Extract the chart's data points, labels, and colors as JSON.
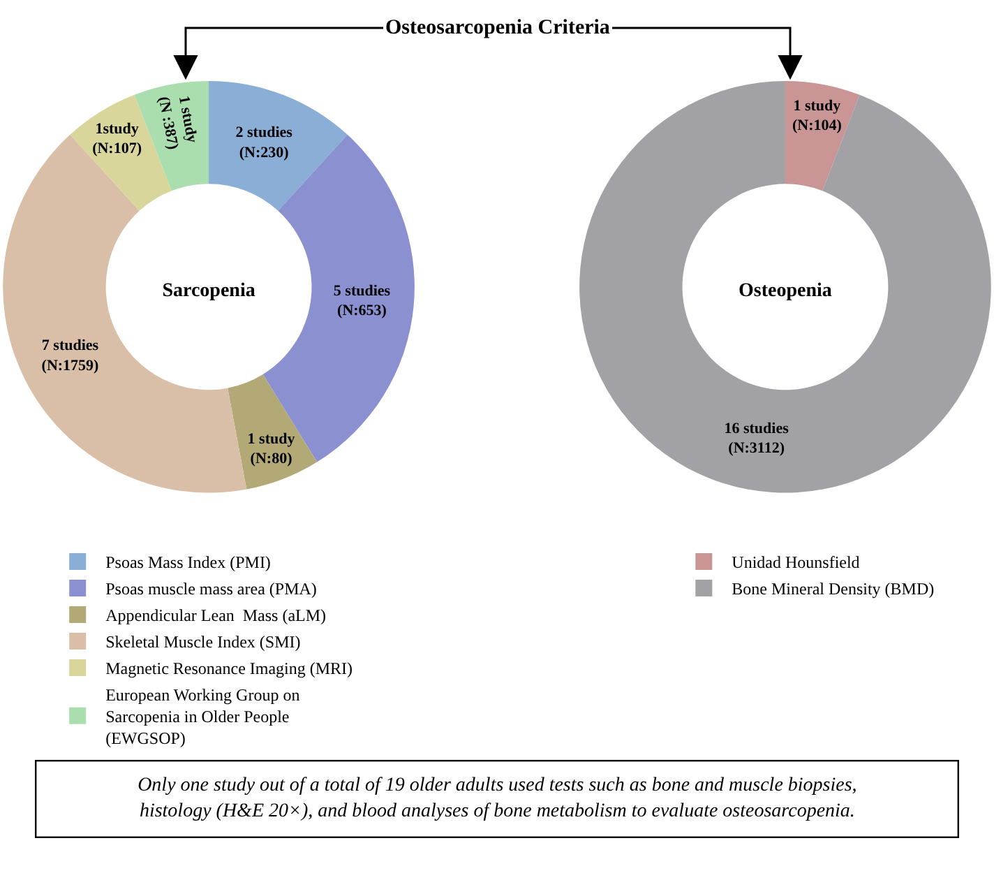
{
  "chart_data": [
    {
      "type": "donut",
      "title": "Sarcopenia",
      "categories": [
        "Psoas Mass Index (PMI)",
        "Psoas muscle mass area (PMA)",
        "Appendicular Lean  Mass (aLM)",
        "Skeletal Muscle Index (SMI)",
        "Magnetic Resonance Imaging (MRI)",
        "European Working Group on\nSarcopenia in Older People\n(EWGSOP)"
      ],
      "values": [
        2,
        5,
        1,
        7,
        1,
        1
      ],
      "value_labels": [
        "2 studies\n(N:230)",
        "5 studies\n(N:653)",
        "1 study\n(N:80)",
        "7 studies\n(N:1759)",
        "1study\n(N:107)",
        "1 study\n(N :387)"
      ],
      "colors": [
        "#8aaed6",
        "#8b90d0",
        "#b3a977",
        "#dabfa8",
        "#d9d69c",
        "#abdeae"
      ],
      "legend": "bottom left",
      "annotations": [
        "Osteosarcopenia Criteria",
        "Only one study out of a total of 19 older adults used tests such as bone and muscle biopsies,\nhistology (H&E 20×), and blood analyses of bone metabolism to evaluate osteosarcopenia."
      ]
    },
    {
      "type": "donut",
      "title": "Osteopenia",
      "categories": [
        "Unidad Hounsfield",
        "Bone Mineral Density (BMD)"
      ],
      "values": [
        1,
        16
      ],
      "value_labels": [
        "1 study\n(N:104)",
        "16 studies\n(N:3112)"
      ],
      "colors": [
        "#c99595",
        "#a2a1a6"
      ],
      "legend": "bottom right"
    }
  ]
}
